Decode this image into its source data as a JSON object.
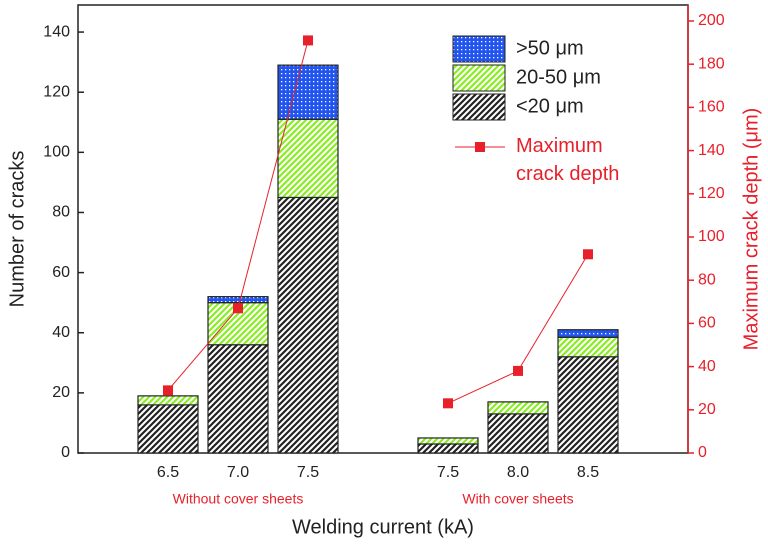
{
  "chart_data": {
    "type": "bar",
    "stacked": true,
    "categories": [
      "6.5",
      "7.0",
      "7.5",
      null,
      "7.5",
      "8.0",
      "8.5"
    ],
    "group_labels": [
      "Without cover sheets",
      "With cover sheets"
    ],
    "group_label_color": "#e8202a",
    "x_label": "Welding current (kA)",
    "y_label": "Number of cracks",
    "y2_label": "Maximum crack depth (μm)",
    "y2_color": "#e8202a",
    "ylim": [
      0,
      149
    ],
    "yticks": [
      0,
      20,
      40,
      60,
      80,
      100,
      120,
      140
    ],
    "y2lim": [
      0,
      207.4
    ],
    "y2ticks": [
      0,
      20,
      40,
      60,
      80,
      100,
      120,
      140,
      160,
      180,
      200
    ],
    "legend": "top-right",
    "series": [
      {
        "name": "<20 μm",
        "color": "#222222",
        "pattern": "hatch",
        "values": [
          16,
          36,
          85,
          null,
          3,
          13,
          32
        ]
      },
      {
        "name": "20-50 μm",
        "color": "#88ee22",
        "pattern": "hatch",
        "values": [
          3,
          14,
          26,
          null,
          2,
          4,
          6.5
        ]
      },
      {
        "name": ">50 μm",
        "color": "#2255ee",
        "pattern": "dots",
        "values": [
          0,
          2,
          18,
          null,
          0,
          0,
          2.5
        ]
      },
      {
        "name": "Maximum crack depth",
        "type": "line",
        "axis": "y2",
        "color": "#e8202a",
        "values": [
          29,
          67,
          191,
          null,
          23,
          38,
          92
        ]
      }
    ]
  }
}
